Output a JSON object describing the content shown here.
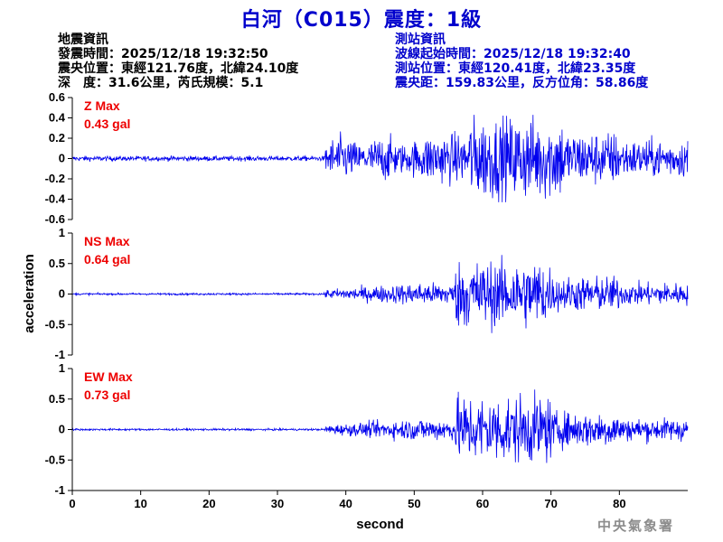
{
  "header": {
    "title": "白河（C015）震度：1級"
  },
  "quake_info": {
    "heading": "地震資訊",
    "time": "發震時間：2025/12/18 19:32:50",
    "epicenter": "震央位置：東經121.76度，北緯24.10度",
    "depth_mag": "深　度：31.6公里，芮氏規模：5.1"
  },
  "station_info": {
    "heading": "測站資訊",
    "start_time": "波線起始時間：2025/12/18 19:32:40",
    "location": "測站位置：東經120.41度，北緯23.35度",
    "distance": "震央距：159.83公里，反方位角：58.86度"
  },
  "footer": {
    "agency": "中央氣象署"
  },
  "colors": {
    "trace": "#0000ee",
    "title": "#0000cc",
    "label": "#ee0000",
    "axis": "#000000"
  },
  "chart_data": {
    "type": "line",
    "xlabel": "second",
    "ylabel": "acceleration",
    "xlim": [
      0,
      90
    ],
    "xticks": [
      0,
      10,
      20,
      30,
      40,
      50,
      60,
      70,
      80
    ],
    "panels": [
      {
        "name": "Z Max",
        "max_label": "0.43 gal",
        "ylim": [
          -0.6,
          0.6
        ],
        "yticks": [
          -0.6,
          -0.4,
          -0.2,
          0,
          0.2,
          0.4,
          0.6
        ],
        "ytick_labels": [
          "-0.6",
          "-0.4",
          "-0.2",
          "0",
          "0.2",
          "0.4",
          "0.6"
        ]
      },
      {
        "name": "NS Max",
        "max_label": "0.64 gal",
        "ylim": [
          -1,
          1
        ],
        "yticks": [
          -1,
          -0.5,
          0,
          0.5,
          1
        ],
        "ytick_labels": [
          "-1",
          "-0.5",
          "0",
          "0.5",
          "1"
        ]
      },
      {
        "name": "EW Max",
        "max_label": "0.73 gal",
        "ylim": [
          -1,
          1
        ],
        "yticks": [
          -1,
          -0.5,
          0,
          0.5,
          1
        ],
        "ytick_labels": [
          "-1",
          "-0.5",
          "0",
          "0.5",
          "1"
        ]
      }
    ]
  }
}
